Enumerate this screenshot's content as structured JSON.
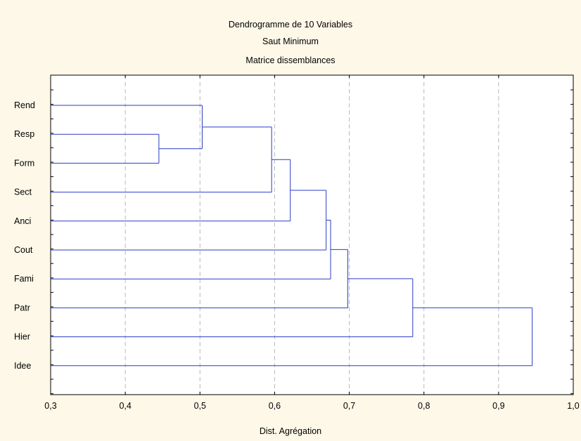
{
  "chart_data": {
    "type": "dendrogram",
    "title": "Dendrogramme de 10  Variables",
    "subtitle": [
      "Saut Minimum",
      "Matrice dissemblances"
    ],
    "xlabel": "Dist. Agrégation",
    "ylabel": "",
    "xlim": [
      0.3,
      1.0
    ],
    "x_ticks": [
      "0,3",
      "0,4",
      "0,5",
      "0,6",
      "0,7",
      "0,8",
      "0,9",
      "1,0"
    ],
    "grid": "vertical dashed",
    "leaves": [
      "Rend",
      "Resp",
      "Form",
      "Sect",
      "Anci",
      "Cout",
      "Fami",
      "Patr",
      "Hier",
      "Idee"
    ],
    "merges": [
      {
        "a": "Resp",
        "b": "Form",
        "height": 0.445
      },
      {
        "a": "Rend",
        "b": "Resp+Form",
        "height": 0.503
      },
      {
        "a": "Rend+Resp+Form",
        "b": "Sect",
        "height": 0.596
      },
      {
        "a": "Rend+Resp+Form+Sect",
        "b": "Anci",
        "height": 0.621
      },
      {
        "a": "Rend+Resp+Form+Sect+Anci",
        "b": "Cout",
        "height": 0.669
      },
      {
        "a": "Rend..Cout",
        "b": "Fami",
        "height": 0.675
      },
      {
        "a": "Rend..Fami",
        "b": "Patr",
        "height": 0.698
      },
      {
        "a": "Rend..Patr",
        "b": "Hier",
        "height": 0.785
      },
      {
        "a": "Rend..Hier",
        "b": "Idee",
        "height": 0.945
      }
    ],
    "line_color": "#2b3bc7"
  }
}
